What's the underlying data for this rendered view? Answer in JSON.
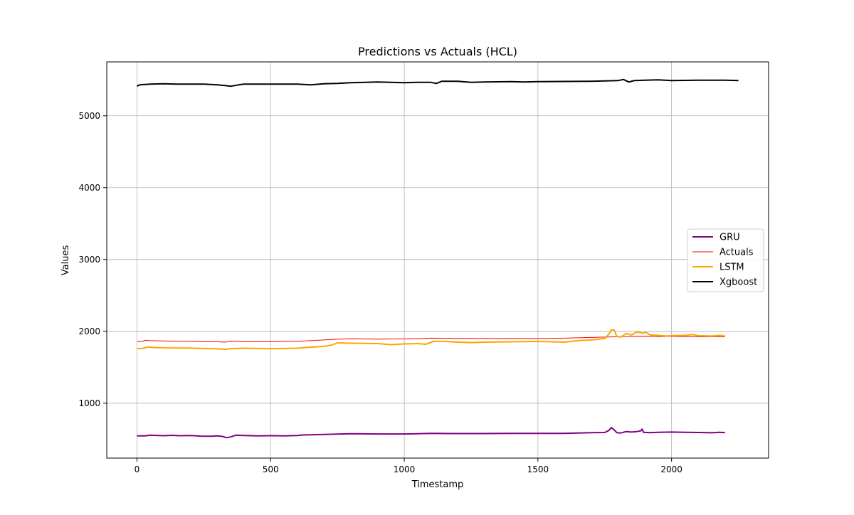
{
  "chart_data": {
    "type": "line",
    "title": "Predictions vs Actuals (HCL)",
    "xlabel": "Timestamp",
    "ylabel": "Values",
    "xlim": [
      -113,
      2363
    ],
    "ylim": [
      236,
      5750
    ],
    "x_ticks": [
      0,
      500,
      1000,
      1500,
      2000
    ],
    "y_ticks": [
      1000,
      2000,
      3000,
      4000,
      5000
    ],
    "grid": true,
    "legend_position": "center-right",
    "series": [
      {
        "name": "GRU",
        "color": "#800080",
        "line_width": 2,
        "points": [
          [
            0,
            545
          ],
          [
            30,
            545
          ],
          [
            50,
            555
          ],
          [
            80,
            550
          ],
          [
            100,
            548
          ],
          [
            130,
            553
          ],
          [
            160,
            548
          ],
          [
            200,
            550
          ],
          [
            240,
            542
          ],
          [
            280,
            540
          ],
          [
            300,
            545
          ],
          [
            320,
            538
          ],
          [
            335,
            520
          ],
          [
            350,
            530
          ],
          [
            370,
            555
          ],
          [
            400,
            550
          ],
          [
            450,
            545
          ],
          [
            500,
            548
          ],
          [
            550,
            545
          ],
          [
            600,
            550
          ],
          [
            620,
            558
          ],
          [
            650,
            560
          ],
          [
            700,
            565
          ],
          [
            750,
            570
          ],
          [
            800,
            575
          ],
          [
            900,
            572
          ],
          [
            1000,
            572
          ],
          [
            1050,
            575
          ],
          [
            1100,
            580
          ],
          [
            1200,
            578
          ],
          [
            1300,
            578
          ],
          [
            1400,
            580
          ],
          [
            1500,
            580
          ],
          [
            1600,
            580
          ],
          [
            1700,
            590
          ],
          [
            1750,
            592
          ],
          [
            1765,
            620
          ],
          [
            1775,
            660
          ],
          [
            1785,
            630
          ],
          [
            1795,
            590
          ],
          [
            1810,
            585
          ],
          [
            1830,
            605
          ],
          [
            1850,
            598
          ],
          [
            1870,
            605
          ],
          [
            1885,
            615
          ],
          [
            1890,
            640
          ],
          [
            1895,
            595
          ],
          [
            1920,
            590
          ],
          [
            1950,
            595
          ],
          [
            2000,
            598
          ],
          [
            2050,
            595
          ],
          [
            2100,
            592
          ],
          [
            2150,
            588
          ],
          [
            2180,
            595
          ],
          [
            2200,
            590
          ]
        ]
      },
      {
        "name": "Actuals",
        "color": "#ff0000",
        "line_width": 1,
        "points": [
          [
            0,
            1855
          ],
          [
            20,
            1860
          ],
          [
            30,
            1875
          ],
          [
            50,
            1870
          ],
          [
            100,
            1865
          ],
          [
            150,
            1862
          ],
          [
            200,
            1860
          ],
          [
            250,
            1858
          ],
          [
            300,
            1855
          ],
          [
            330,
            1850
          ],
          [
            350,
            1862
          ],
          [
            400,
            1858
          ],
          [
            450,
            1856
          ],
          [
            500,
            1858
          ],
          [
            550,
            1860
          ],
          [
            600,
            1862
          ],
          [
            650,
            1870
          ],
          [
            700,
            1880
          ],
          [
            750,
            1890
          ],
          [
            800,
            1895
          ],
          [
            900,
            1892
          ],
          [
            1000,
            1895
          ],
          [
            1050,
            1898
          ],
          [
            1100,
            1905
          ],
          [
            1200,
            1902
          ],
          [
            1300,
            1900
          ],
          [
            1400,
            1902
          ],
          [
            1500,
            1900
          ],
          [
            1600,
            1905
          ],
          [
            1700,
            1915
          ],
          [
            1750,
            1920
          ],
          [
            1800,
            1925
          ],
          [
            1850,
            1930
          ],
          [
            1900,
            1932
          ],
          [
            1950,
            1928
          ],
          [
            2000,
            1930
          ],
          [
            2050,
            1928
          ],
          [
            2100,
            1925
          ],
          [
            2150,
            1928
          ],
          [
            2200,
            1925
          ]
        ]
      },
      {
        "name": "LSTM",
        "color": "#ffa500",
        "line_width": 2,
        "points": [
          [
            0,
            1760
          ],
          [
            20,
            1762
          ],
          [
            40,
            1780
          ],
          [
            60,
            1775
          ],
          [
            100,
            1770
          ],
          [
            150,
            1768
          ],
          [
            200,
            1766
          ],
          [
            250,
            1762
          ],
          [
            300,
            1758
          ],
          [
            330,
            1750
          ],
          [
            350,
            1760
          ],
          [
            400,
            1765
          ],
          [
            450,
            1762
          ],
          [
            500,
            1760
          ],
          [
            550,
            1762
          ],
          [
            600,
            1765
          ],
          [
            650,
            1780
          ],
          [
            700,
            1790
          ],
          [
            730,
            1810
          ],
          [
            750,
            1840
          ],
          [
            800,
            1835
          ],
          [
            900,
            1830
          ],
          [
            950,
            1815
          ],
          [
            1000,
            1825
          ],
          [
            1050,
            1830
          ],
          [
            1080,
            1820
          ],
          [
            1110,
            1860
          ],
          [
            1150,
            1860
          ],
          [
            1200,
            1850
          ],
          [
            1250,
            1845
          ],
          [
            1300,
            1850
          ],
          [
            1400,
            1855
          ],
          [
            1450,
            1858
          ],
          [
            1500,
            1860
          ],
          [
            1550,
            1855
          ],
          [
            1600,
            1850
          ],
          [
            1650,
            1870
          ],
          [
            1700,
            1880
          ],
          [
            1750,
            1900
          ],
          [
            1765,
            1960
          ],
          [
            1775,
            2020
          ],
          [
            1785,
            2020
          ],
          [
            1795,
            1930
          ],
          [
            1810,
            1920
          ],
          [
            1830,
            1970
          ],
          [
            1850,
            1950
          ],
          [
            1870,
            1990
          ],
          [
            1890,
            1975
          ],
          [
            1905,
            1985
          ],
          [
            1920,
            1950
          ],
          [
            1950,
            1945
          ],
          [
            1980,
            1935
          ],
          [
            2000,
            1940
          ],
          [
            2050,
            1945
          ],
          [
            2080,
            1955
          ],
          [
            2100,
            1940
          ],
          [
            2150,
            1935
          ],
          [
            2180,
            1945
          ],
          [
            2200,
            1935
          ]
        ]
      },
      {
        "name": "Xgboost",
        "color": "#000000",
        "line_width": 2,
        "points": [
          [
            0,
            5410
          ],
          [
            10,
            5430
          ],
          [
            50,
            5440
          ],
          [
            100,
            5445
          ],
          [
            150,
            5440
          ],
          [
            200,
            5440
          ],
          [
            250,
            5440
          ],
          [
            300,
            5430
          ],
          [
            330,
            5420
          ],
          [
            350,
            5410
          ],
          [
            380,
            5430
          ],
          [
            400,
            5440
          ],
          [
            500,
            5440
          ],
          [
            600,
            5440
          ],
          [
            650,
            5430
          ],
          [
            700,
            5445
          ],
          [
            750,
            5450
          ],
          [
            800,
            5460
          ],
          [
            900,
            5470
          ],
          [
            1000,
            5460
          ],
          [
            1050,
            5465
          ],
          [
            1100,
            5465
          ],
          [
            1120,
            5450
          ],
          [
            1140,
            5480
          ],
          [
            1200,
            5480
          ],
          [
            1250,
            5465
          ],
          [
            1300,
            5470
          ],
          [
            1400,
            5475
          ],
          [
            1450,
            5470
          ],
          [
            1500,
            5475
          ],
          [
            1600,
            5478
          ],
          [
            1700,
            5480
          ],
          [
            1750,
            5485
          ],
          [
            1800,
            5490
          ],
          [
            1820,
            5505
          ],
          [
            1840,
            5470
          ],
          [
            1860,
            5490
          ],
          [
            1900,
            5495
          ],
          [
            1950,
            5500
          ],
          [
            2000,
            5490
          ],
          [
            2100,
            5495
          ],
          [
            2200,
            5495
          ],
          [
            2250,
            5490
          ]
        ]
      }
    ]
  }
}
